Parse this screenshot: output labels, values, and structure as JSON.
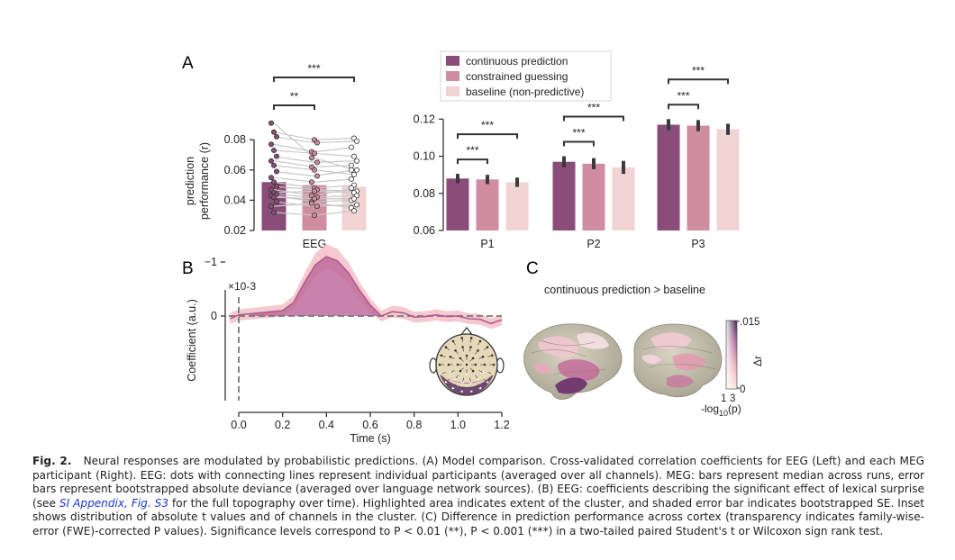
{
  "panels": {
    "a": "A",
    "b": "B",
    "c": "C"
  },
  "legend": [
    "continuous prediction",
    "constrained guessing",
    "baseline (non-predictive)"
  ],
  "colors": {
    "cont": "#8a4c78",
    "cons": "#d08ca0",
    "base": "#f2d3d3",
    "err": "#3a3a3a",
    "line": "#c8c8c8",
    "trace": "#b05a90",
    "band": "#f4c0c6",
    "cluster": "#c06c9e"
  },
  "chart_data": [
    {
      "type": "bar",
      "title": "",
      "xlabel": "",
      "ylabel": "prediction performance (r)",
      "categories": [
        "EEG"
      ],
      "series": [
        {
          "name": "continuous prediction",
          "values": [
            0.052
          ]
        },
        {
          "name": "constrained guessing",
          "values": [
            0.05
          ]
        },
        {
          "name": "baseline (non-predictive)",
          "values": [
            0.049
          ]
        }
      ],
      "participants": [
        [
          0.091,
          0.068,
          0.06
        ],
        [
          0.085,
          0.08,
          0.081
        ],
        [
          0.082,
          0.078,
          0.079
        ],
        [
          0.077,
          0.072,
          0.075
        ],
        [
          0.073,
          0.071,
          0.069
        ],
        [
          0.069,
          0.065,
          0.066
        ],
        [
          0.066,
          0.062,
          0.063
        ],
        [
          0.063,
          0.06,
          0.057
        ],
        [
          0.059,
          0.056,
          0.06
        ],
        [
          0.055,
          0.052,
          0.054
        ],
        [
          0.052,
          0.048,
          0.05
        ],
        [
          0.049,
          0.047,
          0.046
        ],
        [
          0.047,
          0.043,
          0.048
        ],
        [
          0.045,
          0.046,
          0.045
        ],
        [
          0.044,
          0.042,
          0.043
        ],
        [
          0.043,
          0.039,
          0.04
        ],
        [
          0.042,
          0.041,
          0.041
        ],
        [
          0.039,
          0.036,
          0.037
        ],
        [
          0.036,
          0.038,
          0.035
        ],
        [
          0.032,
          0.03,
          0.033
        ]
      ],
      "ylim": [
        0.02,
        0.095
      ],
      "yticks": [
        "0.02",
        "0.04",
        "0.06",
        "0.08"
      ],
      "significance": [
        {
          "pair": [
            0,
            1
          ],
          "label": "**"
        },
        {
          "pair": [
            0,
            2
          ],
          "label": "***"
        }
      ]
    },
    {
      "type": "bar",
      "title": "",
      "xlabel": "",
      "ylabel": "",
      "categories": [
        "P1",
        "P2",
        "P3"
      ],
      "series": [
        {
          "name": "continuous prediction",
          "values": [
            0.088,
            0.097,
            0.117
          ],
          "err": [
            0.0025,
            0.003,
            0.003
          ]
        },
        {
          "name": "constrained guessing",
          "values": [
            0.0875,
            0.096,
            0.1165
          ],
          "err": [
            0.0025,
            0.003,
            0.003
          ]
        },
        {
          "name": "baseline (non-predictive)",
          "values": [
            0.086,
            0.094,
            0.1145
          ],
          "err": [
            0.0025,
            0.0035,
            0.003
          ]
        }
      ],
      "ylim": [
        0.06,
        0.125
      ],
      "yticks": [
        "0.06",
        "0.08",
        "0.10",
        "0.12"
      ],
      "significance": [
        {
          "pair": [
            0,
            1
          ],
          "label": "***"
        },
        {
          "pair": [
            0,
            2
          ],
          "label": "***"
        }
      ]
    },
    {
      "type": "line",
      "title": "",
      "xlabel": "Time (s)",
      "ylabel": "Coefficient (a.u.)",
      "scale_label": "×10-3",
      "x": [
        -0.04,
        0.0,
        0.05,
        0.1,
        0.15,
        0.2,
        0.25,
        0.3,
        0.35,
        0.4,
        0.45,
        0.5,
        0.55,
        0.6,
        0.65,
        0.7,
        0.75,
        0.8,
        0.85,
        0.9,
        0.95,
        1.0,
        1.05,
        1.1,
        1.15,
        1.2
      ],
      "y": [
        0.05,
        -0.02,
        -0.04,
        -0.06,
        -0.08,
        -0.1,
        -0.25,
        -0.62,
        -0.95,
        -1.1,
        -1.02,
        -0.8,
        -0.48,
        -0.2,
        0.0,
        -0.08,
        -0.06,
        0.02,
        0.01,
        -0.02,
        0.01,
        0.0,
        0.05,
        0.06,
        0.14,
        0.07
      ],
      "se": 0.1,
      "xlim": [
        -0.04,
        1.2
      ],
      "ylim": [
        -1.3,
        0.15
      ],
      "xticks": [
        "0.0",
        "0.2",
        "0.4",
        "0.6",
        "0.8",
        "1.0",
        "1.2"
      ],
      "yticks": [
        "0",
        "−1"
      ],
      "cluster": [
        0.05,
        0.66
      ],
      "annotation": "***"
    }
  ],
  "panel_c": {
    "title": "continuous prediction > baseline",
    "colorbar_top": ".015",
    "colorbar_bottom": "0",
    "colorbar_label": "Δr",
    "alpha_ticks": [
      "1",
      "3"
    ],
    "alpha_label_main": "-log",
    "alpha_label_sub": "10",
    "alpha_label_end": "(p)"
  },
  "caption": {
    "label": "Fig. 2.",
    "part1": "Neural responses are modulated by probabilistic predictions. (A) Model comparison. Cross-validated correlation coefficients for EEG (Left) and each MEG participant (Right). EEG: dots with connecting lines represent individual participants (averaged over all channels). MEG: bars represent median across runs, error bars represent bootstrapped absolute deviance (averaged over language network sources). (B) EEG: coefficients describing the significant effect of lexical surprise (see",
    "link": "SI Appendix",
    "part2": ", Fig. S3",
    "part3": "for the full topography over time). Highlighted area indicates extent of the cluster, and shaded error bar indicates bootstrapped SE. Inset shows distribution of absolute t values and of channels in the cluster. (C) Difference in prediction performance across cortex (transparency indicates family-wise-error (FWE)-corrected P values). Significance levels correspond to P < 0.01 (**), P < 0.001 (***) in a two-tailed paired Student's t or Wilcoxon sign rank test."
  }
}
